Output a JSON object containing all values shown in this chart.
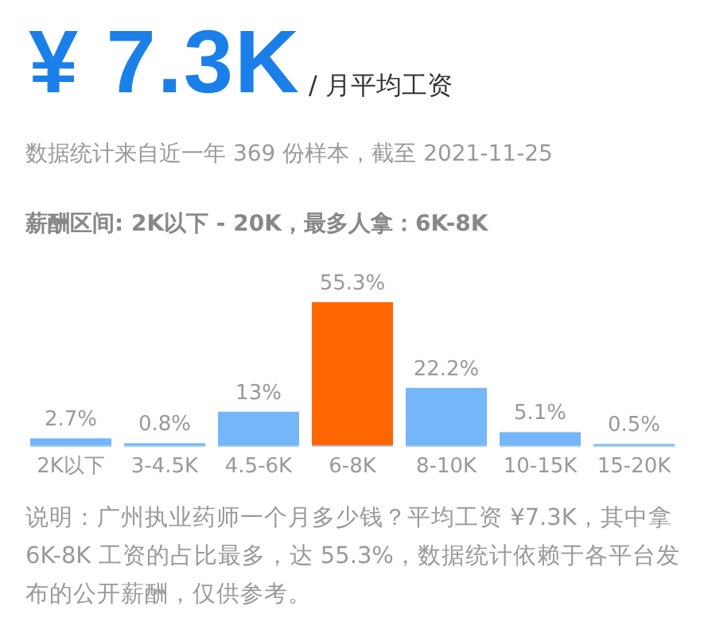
{
  "chart_data": {
    "type": "bar",
    "title": "¥ 7.3K",
    "annotations": [
      "/ 月平均工资",
      "数据统计来自近一年 369 份样本，截至 2021-11-25",
      "薪酬区间: 2K以下 - 20K，最多人拿：6K-8K",
      "说明：广州执业药师一个月多少钱？平均工资 ¥7.3K，其中拿 6K-8K 工资的占比最多，达 55.3%，数据统计依赖于各平台发布的公开薪酬，仅供参考。"
    ],
    "categories": [
      "2K以下",
      "3-4.5K",
      "4.5-6K",
      "6-8K",
      "8-10K",
      "10-15K",
      "15-20K"
    ],
    "values": [
      2.7,
      0.8,
      13,
      55.3,
      22.2,
      5.1,
      0.5
    ],
    "value_labels": [
      "2.7%",
      "0.8%",
      "13%",
      "55.3%",
      "22.2%",
      "5.1%",
      "0.5%"
    ],
    "colors": [
      "#74b6f7",
      "#74b6f7",
      "#74b6f7",
      "#ff6600",
      "#74b6f7",
      "#74b6f7",
      "#74b6f7"
    ]
  }
}
